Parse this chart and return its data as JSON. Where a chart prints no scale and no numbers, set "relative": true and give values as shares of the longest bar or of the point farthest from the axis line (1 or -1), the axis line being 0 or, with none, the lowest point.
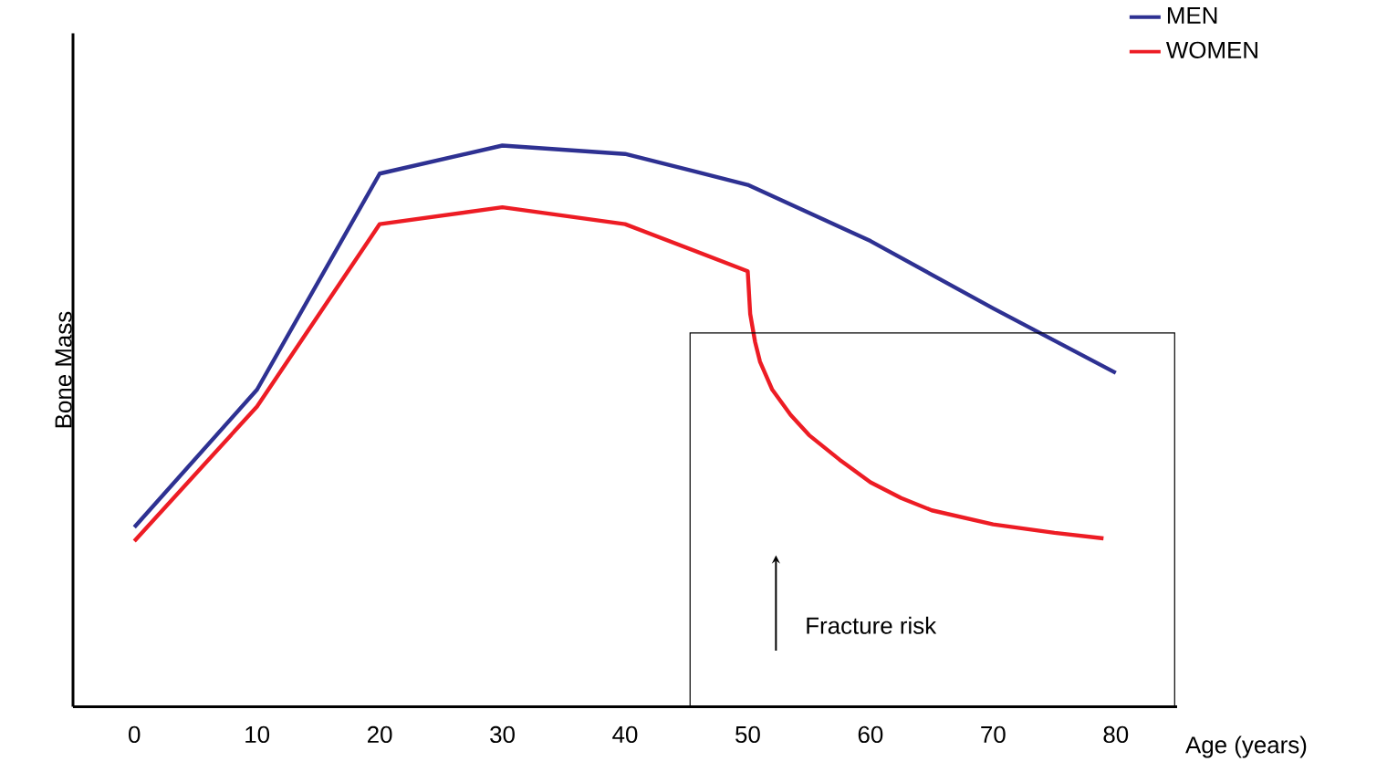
{
  "chart_data": {
    "type": "line",
    "relative": true,
    "xlabel": "Age (years)",
    "ylabel": "Bone Mass",
    "xlim": [
      -5,
      85
    ],
    "xticks": [
      0,
      10,
      20,
      30,
      40,
      50,
      60,
      70,
      80
    ],
    "legend": "top right",
    "line_style": "solid",
    "marker": "none",
    "annotations": [
      "Fracture risk"
    ],
    "series": [
      {
        "name": "MEN",
        "color": "#2e3192",
        "x": [
          0,
          10,
          20,
          30,
          40,
          50,
          60,
          70,
          80
        ],
        "values": [
          0.32,
          0.565,
          0.95,
          1,
          0.985,
          0.93,
          0.83,
          0.71,
          0.595
        ]
      },
      {
        "name": "WOMEN",
        "color": "#ed1c24",
        "x": [
          0,
          10,
          20,
          30,
          40,
          50,
          50.2,
          50.6,
          51,
          52,
          53.5,
          55,
          57.5,
          60,
          62.5,
          65,
          70,
          75,
          79
        ],
        "values": [
          0.295,
          0.535,
          0.86,
          0.89,
          0.86,
          0.776,
          0.7,
          0.65,
          0.615,
          0.565,
          0.52,
          0.484,
          0.44,
          0.4,
          0.372,
          0.35,
          0.325,
          0.31,
          0.3
        ]
      }
    ]
  }
}
